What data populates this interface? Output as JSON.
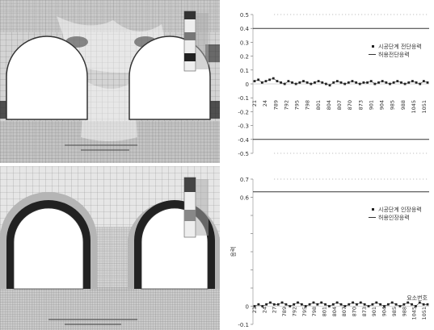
{
  "chart_data": [
    {
      "type": "line",
      "title": "",
      "xlabel": "",
      "ylabel": "",
      "ylim": [
        -0.5,
        0.5
      ],
      "yticks": [
        "0.5",
        "0.4",
        "0.3",
        "0.2",
        "0.1",
        "0",
        "-0.1",
        "-0.2",
        "-0.3",
        "-0.4",
        "-0.5"
      ],
      "xticks": [
        "21",
        "24",
        "789",
        "792",
        "795",
        "798",
        "801",
        "804",
        "807",
        "870",
        "873",
        "901",
        "904",
        "985",
        "988",
        "1045",
        "1051"
      ],
      "legend": [
        "시공단계 전단응력",
        "허용전단응력"
      ],
      "legend_position": "top-right",
      "series": [
        {
          "name": "시공단계 전단응력",
          "marker": "square",
          "values": [
            0.02,
            0.03,
            0.01,
            0.02,
            0.03,
            0.04,
            0.02,
            0.01,
            0.0,
            0.02,
            0.01,
            0.0,
            0.01,
            0.02,
            0.01,
            0.0,
            0.01,
            0.02,
            0.01,
            0.0,
            -0.01,
            0.01,
            0.02,
            0.01,
            0.0,
            0.01,
            0.02,
            0.01,
            0.0,
            0.01,
            0.01,
            0.02,
            0.0,
            0.01,
            0.02,
            0.01,
            0.0,
            0.01,
            0.02,
            0.01,
            0.0,
            0.01,
            0.02,
            0.01,
            0.0,
            0.02,
            0.01
          ]
        },
        {
          "name": "허용전단응력",
          "values": [
            0.4,
            0.4
          ]
        },
        {
          "name": "허용전단응력",
          "values": [
            -0.4,
            -0.4
          ]
        }
      ]
    },
    {
      "type": "line",
      "title": "",
      "xlabel": "요소번호",
      "ylabel": "응력",
      "ylim": [
        -0.1,
        0.7
      ],
      "yticks": [
        "0.7",
        "0.6",
        "",
        "",
        "",
        "",
        "",
        "0",
        "-0.1"
      ],
      "xticks": [
        "21",
        "24",
        "27",
        "789",
        "792",
        "795",
        "798",
        "801",
        "804",
        "807",
        "870",
        "873",
        "901",
        "904",
        "985",
        "988",
        "1045",
        "1051"
      ],
      "legend": [
        "시공단계 인장응력",
        "허용인장응력"
      ],
      "legend_position": "top-right",
      "series": [
        {
          "name": "시공단계 인장응력",
          "marker": "square",
          "values": [
            0.0,
            0.01,
            0.0,
            0.01,
            0.02,
            0.01,
            0.01,
            0.02,
            0.01,
            0.0,
            0.01,
            0.02,
            0.01,
            0.0,
            0.01,
            0.02,
            0.01,
            0.02,
            0.01,
            0.0,
            0.01,
            0.02,
            0.01,
            0.0,
            0.01,
            0.02,
            0.01,
            0.02,
            0.01,
            0.0,
            0.01,
            0.02,
            0.01,
            0.0,
            0.01,
            0.02,
            0.01,
            0.0,
            0.01,
            0.02,
            0.01,
            0.0,
            0.02,
            0.01,
            0.01
          ]
        },
        {
          "name": "허용인장응력",
          "values": [
            0.63,
            0.63
          ]
        }
      ]
    }
  ]
}
